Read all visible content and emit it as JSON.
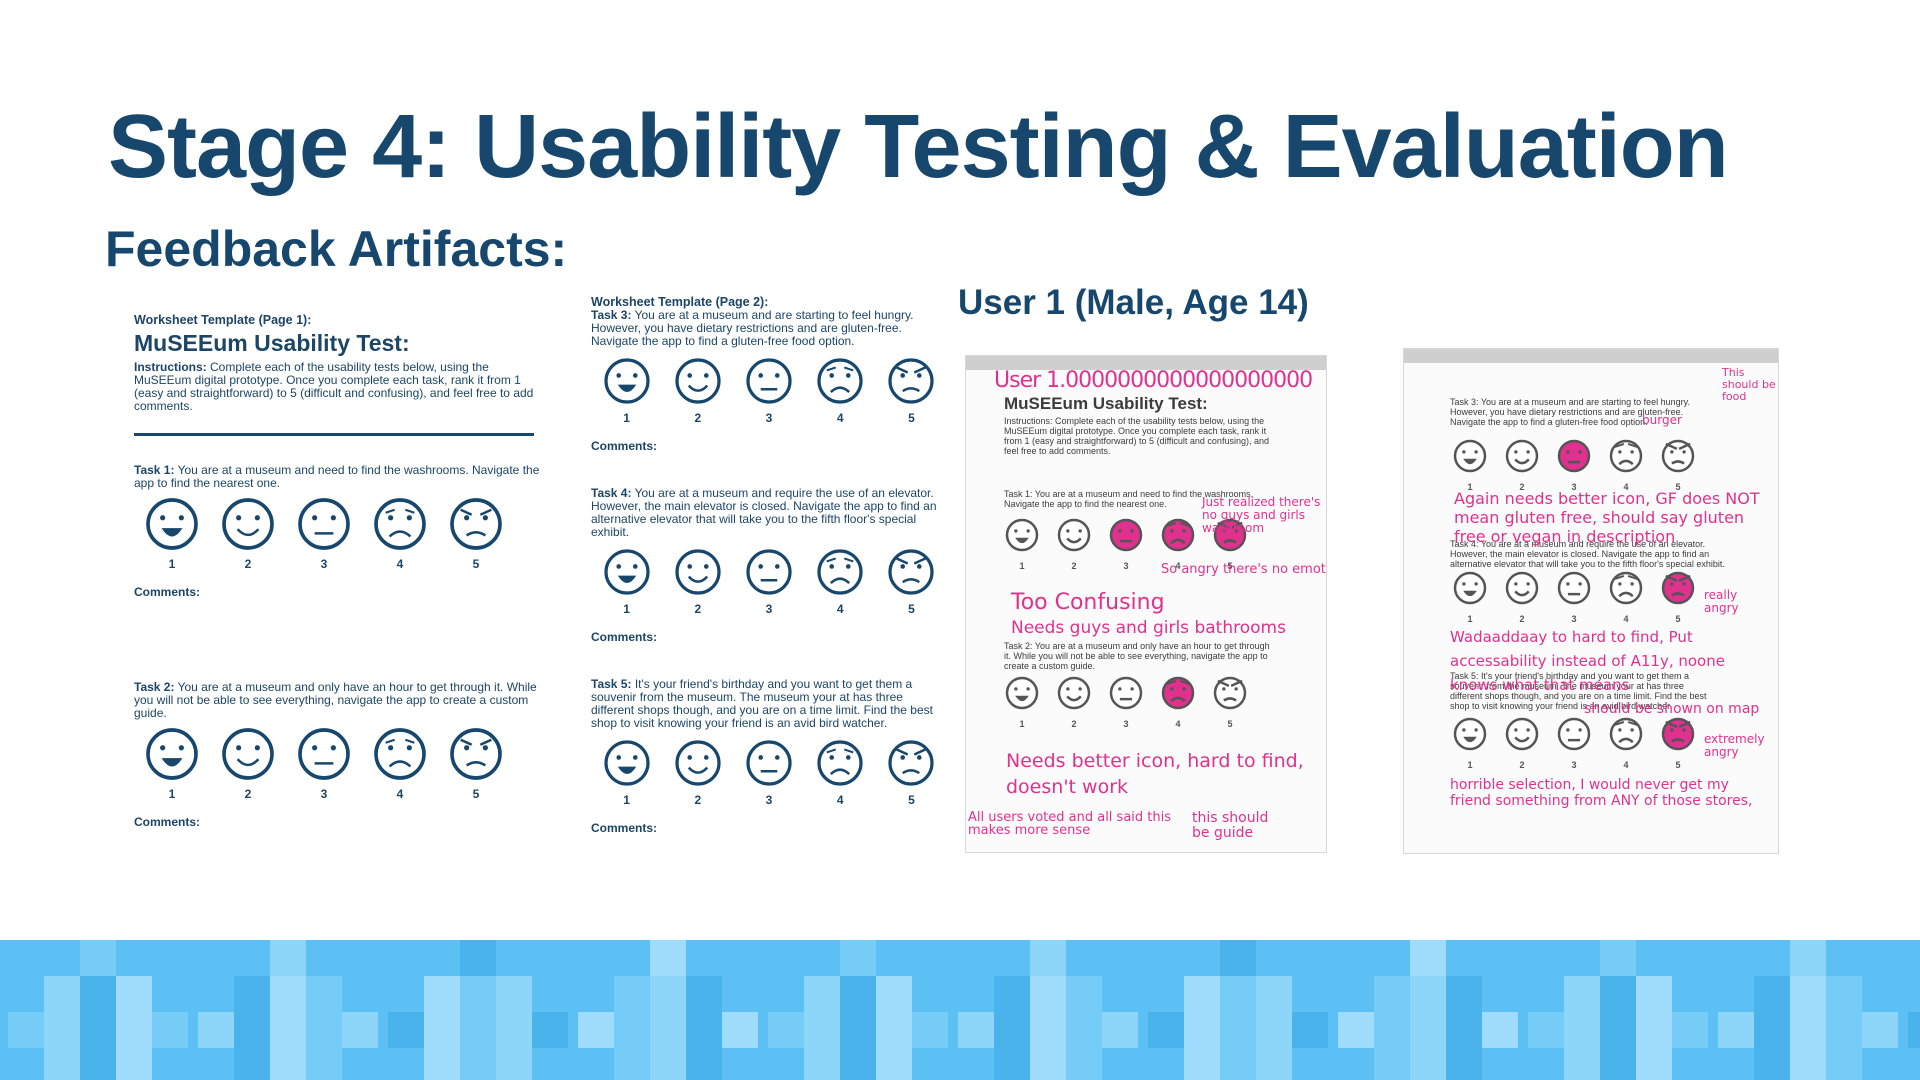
{
  "title": "Stage 4: Usability Testing & Evaluation",
  "subtitle": "Feedback Artifacts:",
  "user_label": "User 1 (Male, Age 14)",
  "colors": {
    "heading": "#17476c",
    "ink": "#e0318f",
    "band": "#5cc0f5"
  },
  "page1": {
    "header": "Worksheet Template (Page 1):",
    "test_title": "MuSEEum Usability Test:",
    "instructions_label": "Instructions:",
    "instructions": "Complete each of the usability tests below, using the MuSEEum digital prototype. Once you complete each task, rank it from 1 (easy and straightforward) to 5 (difficult and confusing), and feel free to add comments.",
    "tasks": [
      {
        "label": "Task 1:",
        "text": "You are at a museum and need to find the washrooms. Navigate the app to find the nearest one."
      },
      {
        "label": "Task 2:",
        "text": "You are at a museum and only have an hour to get through it. While you will not be able to see everything, navigate the app to create a custom guide."
      }
    ]
  },
  "page2": {
    "header": "Worksheet Template (Page 2):",
    "tasks": [
      {
        "label": "Task 3:",
        "text": "You are at a museum and are starting to feel hungry. However, you have dietary restrictions and are gluten-free. Navigate the app to find a gluten-free food option."
      },
      {
        "label": "Task 4:",
        "text": "You are at a museum and require the use of an elevator. However, the main elevator is closed. Navigate the app to find an alternative elevator that will take you to the fifth floor's special exhibit."
      },
      {
        "label": "Task 5:",
        "text": "It's your friend's birthday and you want to get them a souvenir from the museum. The museum your at has three different shops though, and you are on a time limit. Find the best shop to visit knowing your friend is an avid bird watcher."
      }
    ]
  },
  "scale": [
    "1",
    "2",
    "3",
    "4",
    "5"
  ],
  "comments_label": "Comments:",
  "scan1": {
    "user_scrawl": "User 1.0000000000000000000",
    "test_title": "MuSEEum Usability Test:",
    "instructions": "Instructions: Complete each of the usability tests below, using the MuSEEum digital prototype. Once you complete each task, rank it from 1 (easy and straightforward) to 5 (difficult and confusing), and feel free to add comments.",
    "task1": "Task 1: You are at a museum and need to find the washrooms. Navigate the app to find the nearest one.",
    "task2": "Task 2: You are at a museum and only have an hour to get through it. While you will not be able to see everything, navigate the app to create a custom guide.",
    "notes": [
      "Just realized there's no guys and girls washroom",
      "So angry there's no emotion",
      "Too Confusing",
      "Needs guys and girls bathrooms",
      "Needs better icon, hard to find, doesn't work",
      "All users voted and all said this makes more sense",
      "this should be guide"
    ]
  },
  "scan2": {
    "task3": "Task 3: You are at a museum and are starting to feel hungry. However, you have dietary restrictions and are gluten-free. Navigate the app to find a gluten-free food option.",
    "task4": "Task 4: You are at a museum and require the use of an elevator. However, the main elevator is closed. Navigate the app to find an alternative elevator that will take you to the fifth floor's special exhibit.",
    "task5": "Task 5: It's your friend's birthday and you want to get them a souvenir from the museum. The museum your at has three different shops though, and you are on a time limit. Find the best shop to visit knowing your friend is an avid bird watcher.",
    "notes": [
      "This should be food",
      "burger",
      "Again needs better icon, GF does NOT mean gluten free, should say gluten free or vegan in description",
      "really angry",
      "Wadaaddaay to hard to find, Put accessability instead of A11y, noone knows what that means",
      "should be shown on map",
      "extremely angry",
      "horrible selection, I would never get my friend something from ANY of those stores,"
    ]
  }
}
